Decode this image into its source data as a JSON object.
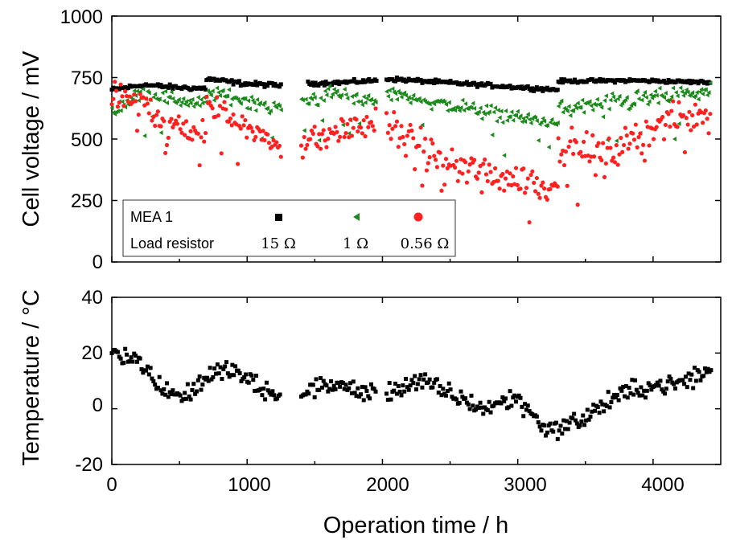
{
  "chart_data": [
    {
      "type": "scatter",
      "ylabel": "Cell voltage / mV",
      "ylim": [
        0,
        1000
      ],
      "xlim": [
        0,
        4500
      ],
      "yticks": [
        "0",
        "250",
        "500",
        "750",
        "1000"
      ],
      "legend": {
        "placement": "lower-left",
        "row1_label": "MEA 1",
        "row2_label": "Load resistor",
        "entries": [
          "15 Ω",
          "1 Ω",
          "0.56 Ω"
        ]
      },
      "series": [
        {
          "name": "15 Ω",
          "color": "#000000",
          "marker": "square",
          "segments": [
            {
              "x0": 0,
              "x1": 700,
              "base": [
                700,
                720,
                710,
                705
              ],
              "noise": 8
            },
            {
              "x0": 700,
              "x1": 1250,
              "base": [
                745,
                725,
                718
              ],
              "noise": 8
            },
            {
              "x0": 1450,
              "x1": 1960,
              "base": [
                725,
                730,
                738
              ],
              "noise": 7
            },
            {
              "x0": 2030,
              "x1": 3300,
              "base": [
                745,
                730,
                715,
                700
              ],
              "noise": 7
            },
            {
              "x0": 3300,
              "x1": 4430,
              "base": [
                735,
                738,
                730
              ],
              "noise": 6
            }
          ]
        },
        {
          "name": "1 Ω",
          "color": "#1a8a1a",
          "marker": "triangle",
          "segments": [
            {
              "x0": 0,
              "x1": 700,
              "base": [
                620,
                690,
                660,
                640
              ],
              "noise": 25
            },
            {
              "x0": 700,
              "x1": 1250,
              "base": [
                690,
                660,
                620
              ],
              "noise": 25
            },
            {
              "x0": 1400,
              "x1": 1960,
              "base": [
                650,
                690,
                640
              ],
              "noise": 25
            },
            {
              "x0": 2030,
              "x1": 3300,
              "base": [
                690,
                640,
                600,
                560
              ],
              "noise": 25
            },
            {
              "x0": 3300,
              "x1": 4430,
              "base": [
                620,
                660,
                690
              ],
              "noise": 28
            }
          ]
        },
        {
          "name": "0.56 Ω",
          "color": "#ff2020",
          "marker": "circle",
          "segments": [
            {
              "x0": 0,
              "x1": 700,
              "base": [
                680,
                640,
                560,
                520
              ],
              "noise": 50
            },
            {
              "x0": 700,
              "x1": 1250,
              "base": [
                640,
                560,
                460
              ],
              "noise": 45
            },
            {
              "x0": 1400,
              "x1": 1960,
              "base": [
                480,
                530,
                570
              ],
              "noise": 45
            },
            {
              "x0": 2030,
              "x1": 3300,
              "base": [
                560,
                400,
                350,
                300
              ],
              "noise": 55
            },
            {
              "x0": 3300,
              "x1": 4430,
              "base": [
                480,
                440,
                560,
                620
              ],
              "noise": 55
            }
          ]
        }
      ]
    },
    {
      "type": "scatter",
      "ylabel": "Temperature / °C",
      "xlabel": "Operation time / h",
      "ylim": [
        -20,
        40
      ],
      "xlim": [
        0,
        4500
      ],
      "yticks": [
        "-20",
        "0",
        "20",
        "40"
      ],
      "xticks": [
        "0",
        "1000",
        "2000",
        "3000",
        "4000"
      ],
      "series": [
        {
          "name": "",
          "color": "#000000",
          "marker": "square",
          "segments": [
            {
              "x0": 0,
              "x1": 1250,
              "base": [
                21,
                18,
                8,
                4,
                12,
                14,
                8,
                3
              ],
              "noise": 3
            },
            {
              "x0": 1400,
              "x1": 1960,
              "base": [
                6,
                9,
                7,
                5
              ],
              "noise": 3
            },
            {
              "x0": 2030,
              "x1": 4430,
              "base": [
                6,
                10,
                5,
                0,
                4,
                -8,
                -4,
                4,
                8,
                9,
                14
              ],
              "noise": 3
            }
          ]
        }
      ]
    }
  ]
}
